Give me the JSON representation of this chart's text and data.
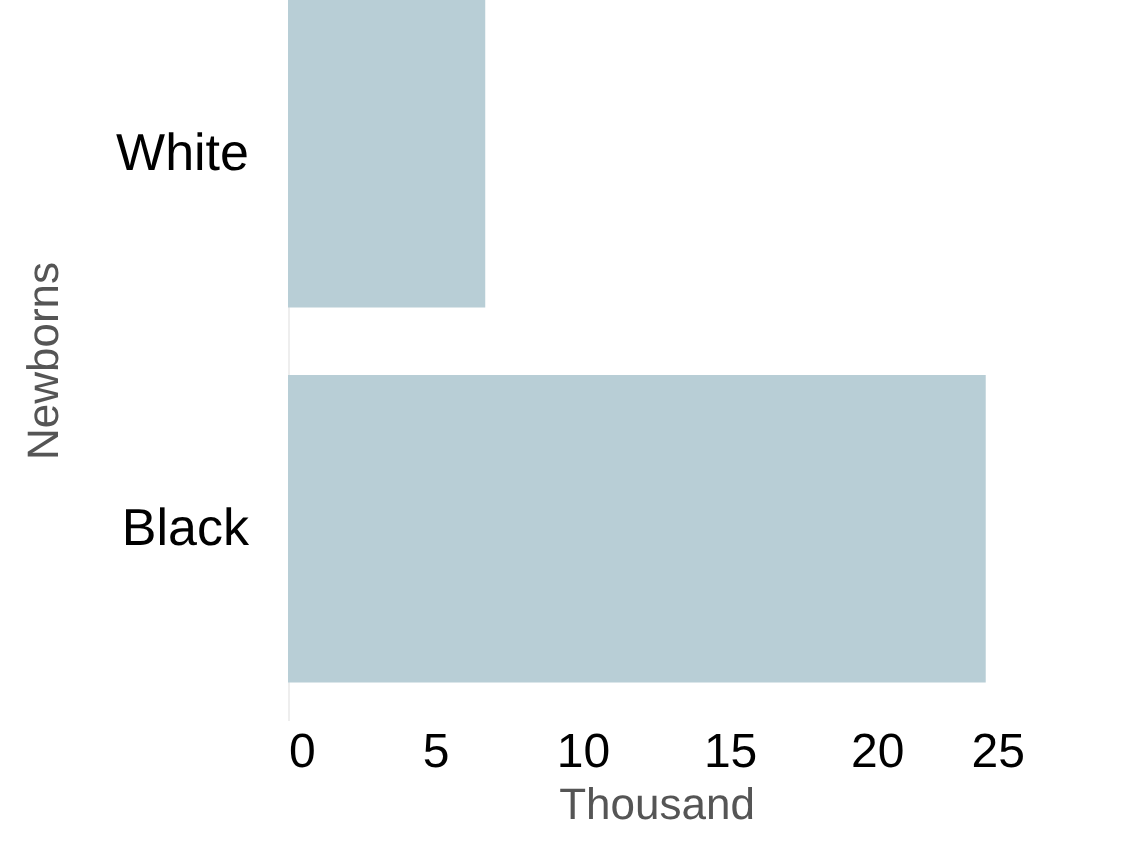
{
  "chart_data": {
    "type": "bar",
    "orientation": "horizontal",
    "categories": [
      "White",
      "Black"
    ],
    "values": [
      6.7,
      23.7
    ],
    "color": "#b8ced6",
    "xlim": [
      0,
      25
    ],
    "xticks": [
      0,
      5,
      10,
      15,
      20,
      25
    ],
    "xlabel": "Thousand",
    "ylabel": "Newborns",
    "grid": false
  }
}
